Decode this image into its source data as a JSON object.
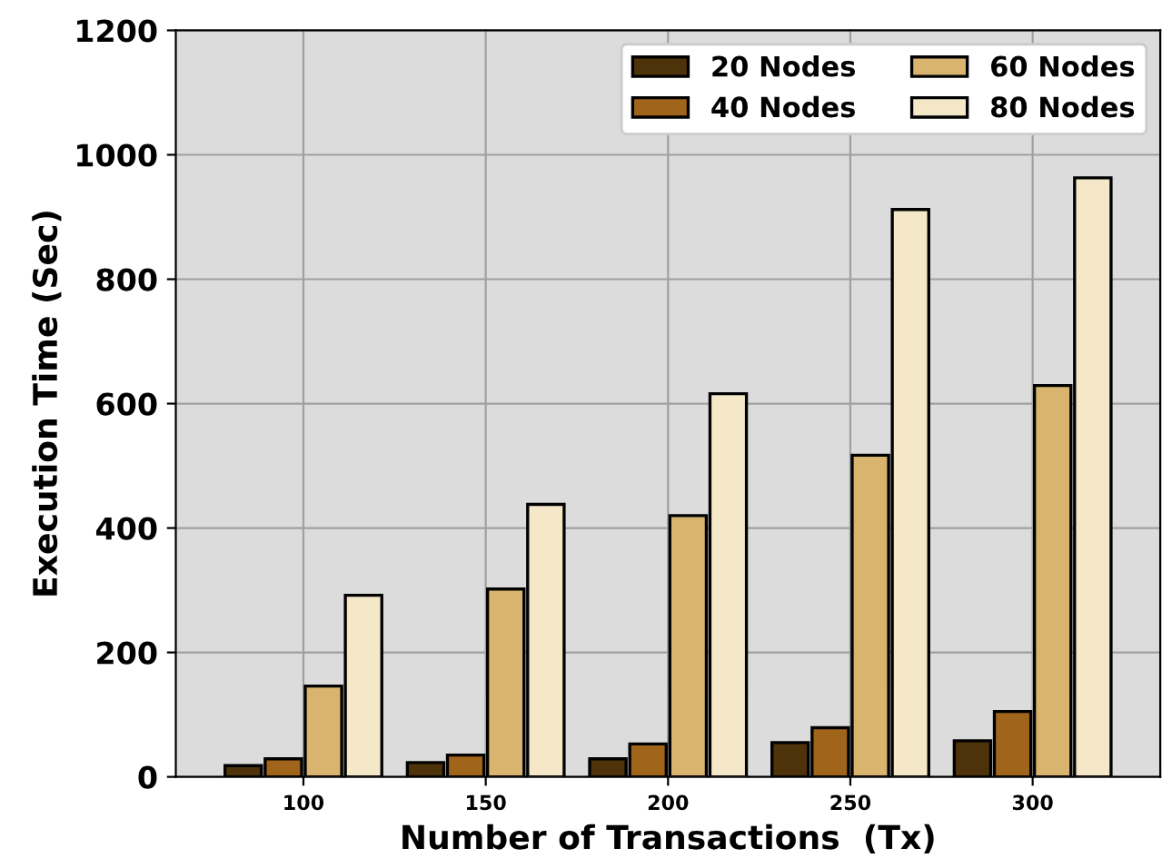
{
  "chart_data": {
    "type": "bar",
    "xlabel": "Number of Transactions  (Tx)",
    "ylabel": "Execution Time (Sec)",
    "categories": [
      "100",
      "150",
      "200",
      "250",
      "300"
    ],
    "series": [
      {
        "name": "20 Nodes",
        "color": "#4e3209",
        "values": [
          18,
          23,
          29,
          55,
          58
        ]
      },
      {
        "name": "40 Nodes",
        "color": "#a0651a",
        "values": [
          29,
          35,
          53,
          79,
          105
        ]
      },
      {
        "name": "60 Nodes",
        "color": "#d9b46e",
        "values": [
          146,
          302,
          420,
          517,
          629
        ]
      },
      {
        "name": "80 Nodes",
        "color": "#f5e8c8",
        "values": [
          292,
          438,
          616,
          912,
          963
        ]
      }
    ],
    "ylim": [
      0,
      1200
    ],
    "yticks": [
      0,
      200,
      400,
      600,
      800,
      1000,
      1200
    ],
    "grid": true,
    "legend": "top right"
  }
}
